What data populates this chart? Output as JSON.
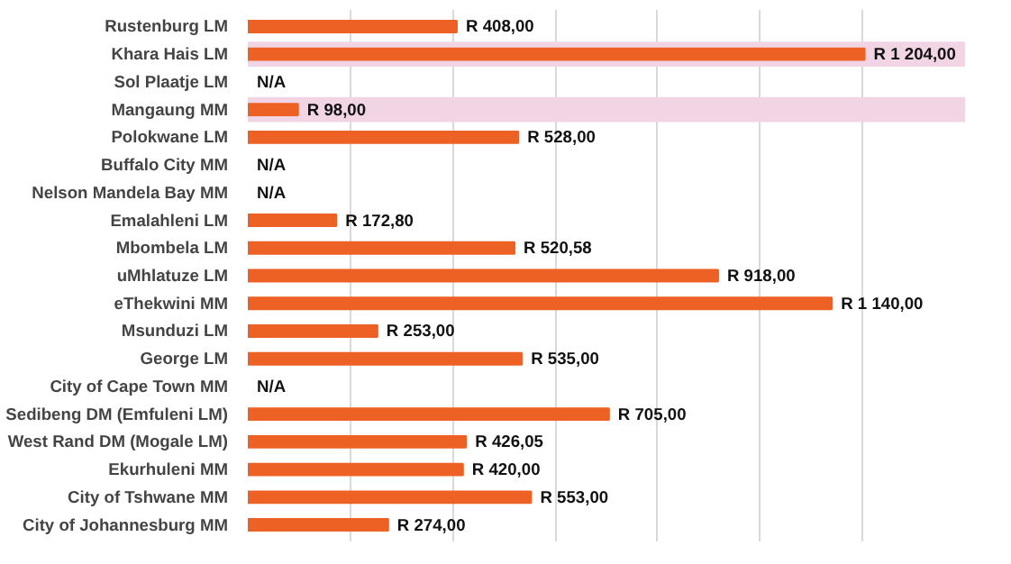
{
  "chart_data": {
    "type": "bar",
    "orientation": "horizontal",
    "categories": [
      "Rustenburg LM",
      "Khara Hais LM",
      "Sol Plaatje LM",
      "Mangaung MM",
      "Polokwane LM",
      "Buffalo City MM",
      "Nelson Mandela Bay MM",
      "Emalahleni LM",
      "Mbombela LM",
      "uMhlatuze LM",
      "eThekwini MM",
      "Msunduzi LM",
      "George LM",
      "City of Cape Town MM",
      "Sedibeng DM (Emfuleni LM)",
      "West Rand DM (Mogale LM)",
      "Ekurhuleni MM",
      "City of Tshwane MM",
      "City of Johannesburg MM"
    ],
    "values": [
      408,
      1204,
      null,
      98,
      528,
      null,
      null,
      172.8,
      520.58,
      918,
      1140,
      253,
      535,
      null,
      705,
      426.05,
      420,
      553,
      274
    ],
    "value_labels": [
      "R 408,00",
      "R 1 204,00",
      "N/A",
      "R 98,00",
      "R 528,00",
      "N/A",
      "N/A",
      "R 172,80",
      "R 520,58",
      "R 918,00",
      "R 1 140,00",
      "R 253,00",
      "R 535,00",
      "N/A",
      "R 705,00",
      "R 426,05",
      "R 420,00",
      "R 553,00",
      "R 274,00"
    ],
    "color": "#ee6125",
    "xlim": [
      0,
      1400
    ],
    "tick_labels": "y",
    "grid": "x",
    "bands": [
      {
        "axis": "y",
        "from": "Khara Hais LM",
        "to": "Khara Hais LM",
        "color": "#f2d5e5"
      },
      {
        "axis": "y",
        "from": "Mangaung MM",
        "to": "Mangaung MM",
        "color": "#f2d5e5"
      }
    ]
  }
}
